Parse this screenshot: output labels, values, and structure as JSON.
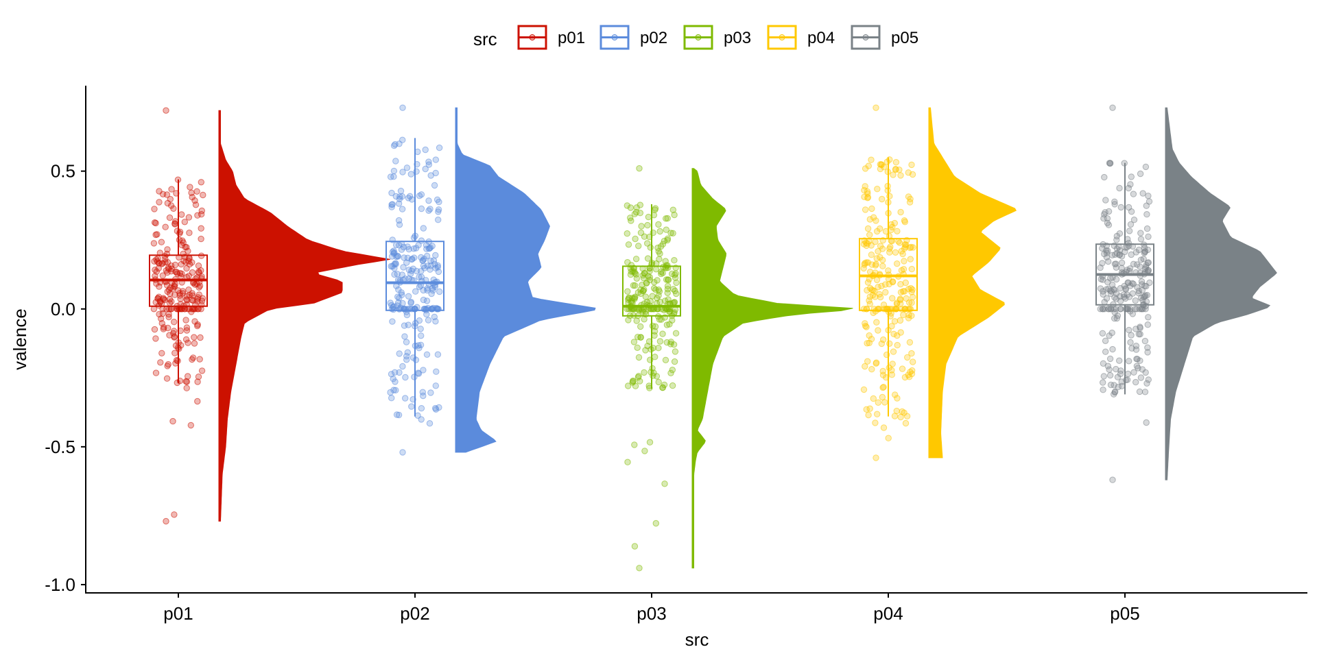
{
  "chart_data": {
    "type": "raincloud",
    "xlabel": "src",
    "ylabel": "valence",
    "ylim": [
      -1.03,
      0.81
    ],
    "y_ticks": [
      {
        "value": 0.5,
        "label": "0.5"
      },
      {
        "value": 0.0,
        "label": "0.0"
      },
      {
        "value": -0.5,
        "label": "-0.5"
      },
      {
        "value": -1.0,
        "label": "-1.0"
      }
    ],
    "grid": false,
    "legend": {
      "title": "src",
      "position": "top"
    },
    "categories": [
      "p01",
      "p02",
      "p03",
      "p04",
      "p05"
    ],
    "series": [
      {
        "name": "p01",
        "color": "#CC1100",
        "box": {
          "min": -0.27,
          "q1": 0.01,
          "median": 0.105,
          "q3": 0.195,
          "max": 0.47
        },
        "range": [
          -0.77,
          0.72
        ],
        "density": [
          [
            -0.77,
            0.01
          ],
          [
            -0.6,
            0.02
          ],
          [
            -0.5,
            0.04
          ],
          [
            -0.4,
            0.05
          ],
          [
            -0.3,
            0.07
          ],
          [
            -0.2,
            0.1
          ],
          [
            -0.1,
            0.13
          ],
          [
            -0.05,
            0.15
          ],
          [
            0.0,
            0.3
          ],
          [
            0.02,
            0.55
          ],
          [
            0.06,
            0.72
          ],
          [
            0.1,
            0.72
          ],
          [
            0.13,
            0.55
          ],
          [
            0.16,
            0.8
          ],
          [
            0.18,
            1.0
          ],
          [
            0.21,
            0.72
          ],
          [
            0.25,
            0.52
          ],
          [
            0.3,
            0.4
          ],
          [
            0.35,
            0.3
          ],
          [
            0.4,
            0.15
          ],
          [
            0.45,
            0.1
          ],
          [
            0.5,
            0.08
          ],
          [
            0.54,
            0.04
          ],
          [
            0.6,
            0.01
          ],
          [
            0.72,
            0.01
          ]
        ]
      },
      {
        "name": "p02",
        "color": "#5B8BDC",
        "box": {
          "min": -0.39,
          "q1": -0.005,
          "median": 0.095,
          "q3": 0.245,
          "max": 0.62
        },
        "range": [
          -0.52,
          0.73
        ],
        "density": [
          [
            -0.52,
            0.06
          ],
          [
            -0.48,
            0.24
          ],
          [
            -0.44,
            0.15
          ],
          [
            -0.4,
            0.12
          ],
          [
            -0.3,
            0.14
          ],
          [
            -0.2,
            0.2
          ],
          [
            -0.1,
            0.28
          ],
          [
            -0.04,
            0.5
          ],
          [
            0.0,
            0.85
          ],
          [
            0.04,
            0.45
          ],
          [
            0.1,
            0.42
          ],
          [
            0.15,
            0.5
          ],
          [
            0.2,
            0.48
          ],
          [
            0.25,
            0.52
          ],
          [
            0.3,
            0.55
          ],
          [
            0.36,
            0.5
          ],
          [
            0.42,
            0.4
          ],
          [
            0.48,
            0.25
          ],
          [
            0.52,
            0.2
          ],
          [
            0.56,
            0.04
          ],
          [
            0.6,
            0.01
          ],
          [
            0.73,
            0.01
          ]
        ]
      },
      {
        "name": "p03",
        "color": "#7FBA00",
        "box": {
          "min": -0.29,
          "q1": -0.025,
          "median": 0.01,
          "q3": 0.155,
          "max": 0.38
        },
        "range": [
          -0.94,
          0.51
        ],
        "density": [
          [
            -0.94,
            0.01
          ],
          [
            -0.8,
            0.01
          ],
          [
            -0.7,
            0.01
          ],
          [
            -0.6,
            0.01
          ],
          [
            -0.55,
            0.02
          ],
          [
            -0.52,
            0.03
          ],
          [
            -0.48,
            0.08
          ],
          [
            -0.44,
            0.03
          ],
          [
            -0.4,
            0.06
          ],
          [
            -0.3,
            0.09
          ],
          [
            -0.2,
            0.12
          ],
          [
            -0.1,
            0.18
          ],
          [
            -0.05,
            0.3
          ],
          [
            -0.02,
            0.6
          ],
          [
            0.0,
            1.0
          ],
          [
            0.02,
            0.5
          ],
          [
            0.05,
            0.25
          ],
          [
            0.1,
            0.16
          ],
          [
            0.15,
            0.18
          ],
          [
            0.2,
            0.2
          ],
          [
            0.25,
            0.15
          ],
          [
            0.3,
            0.14
          ],
          [
            0.36,
            0.2
          ],
          [
            0.4,
            0.12
          ],
          [
            0.45,
            0.05
          ],
          [
            0.5,
            0.03
          ],
          [
            0.51,
            0.01
          ]
        ]
      },
      {
        "name": "p04",
        "color": "#FFC800",
        "box": {
          "min": -0.39,
          "q1": -0.005,
          "median": 0.12,
          "q3": 0.255,
          "max": 0.55
        },
        "range": [
          -0.54,
          0.73
        ],
        "density": [
          [
            -0.54,
            0.08
          ],
          [
            -0.45,
            0.07
          ],
          [
            -0.3,
            0.08
          ],
          [
            -0.2,
            0.1
          ],
          [
            -0.1,
            0.17
          ],
          [
            -0.03,
            0.35
          ],
          [
            0.02,
            0.45
          ],
          [
            0.07,
            0.3
          ],
          [
            0.12,
            0.25
          ],
          [
            0.17,
            0.35
          ],
          [
            0.22,
            0.42
          ],
          [
            0.28,
            0.3
          ],
          [
            0.32,
            0.38
          ],
          [
            0.36,
            0.52
          ],
          [
            0.42,
            0.3
          ],
          [
            0.48,
            0.15
          ],
          [
            0.55,
            0.08
          ],
          [
            0.6,
            0.03
          ],
          [
            0.73,
            0.01
          ]
        ]
      },
      {
        "name": "p05",
        "color": "#7A8287",
        "box": {
          "min": -0.31,
          "q1": 0.015,
          "median": 0.125,
          "q3": 0.235,
          "max": 0.53
        },
        "range": [
          -0.62,
          0.73
        ],
        "density": [
          [
            -0.62,
            0.01
          ],
          [
            -0.5,
            0.02
          ],
          [
            -0.4,
            0.03
          ],
          [
            -0.3,
            0.06
          ],
          [
            -0.2,
            0.11
          ],
          [
            -0.1,
            0.16
          ],
          [
            -0.05,
            0.3
          ],
          [
            -0.02,
            0.48
          ],
          [
            0.01,
            0.62
          ],
          [
            0.04,
            0.5
          ],
          [
            0.08,
            0.55
          ],
          [
            0.13,
            0.65
          ],
          [
            0.17,
            0.6
          ],
          [
            0.21,
            0.55
          ],
          [
            0.26,
            0.38
          ],
          [
            0.32,
            0.33
          ],
          [
            0.37,
            0.38
          ],
          [
            0.42,
            0.26
          ],
          [
            0.48,
            0.15
          ],
          [
            0.53,
            0.08
          ],
          [
            0.58,
            0.04
          ],
          [
            0.73,
            0.01
          ]
        ]
      }
    ]
  }
}
